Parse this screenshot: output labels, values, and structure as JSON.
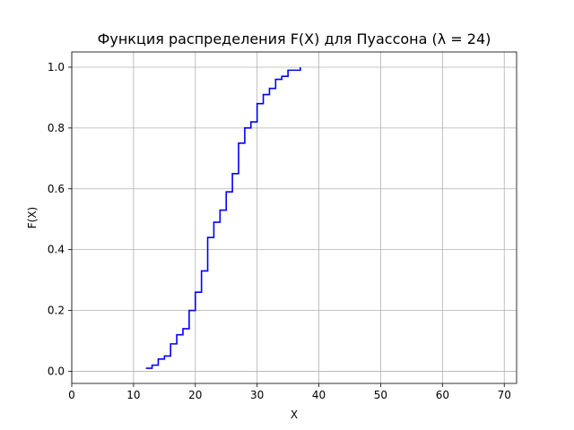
{
  "chart_data": {
    "type": "line",
    "drawstyle": "steps-post",
    "title": "Функция распределения F(X) для Пуассона (λ = 24)",
    "xlabel": "X",
    "ylabel": "F(X)",
    "xlim": [
      0,
      72
    ],
    "ylim": [
      -0.04,
      1.05
    ],
    "xticks": [
      0,
      10,
      20,
      30,
      40,
      50,
      60,
      70
    ],
    "yticks": [
      0.0,
      0.2,
      0.4,
      0.6,
      0.8,
      1.0
    ],
    "xtick_labels": [
      "0",
      "10",
      "20",
      "30",
      "40",
      "50",
      "60",
      "70"
    ],
    "ytick_labels": [
      "0.0",
      "0.2",
      "0.4",
      "0.6",
      "0.8",
      "1.0"
    ],
    "grid": true,
    "series": [
      {
        "color": "#0000ff",
        "x": [
          12,
          13,
          14,
          15,
          16,
          17,
          18,
          19,
          20,
          21,
          22,
          23,
          24,
          25,
          26,
          27,
          28,
          29,
          30,
          31,
          32,
          33,
          34,
          35,
          36,
          37
        ],
        "y": [
          0.01,
          0.02,
          0.04,
          0.05,
          0.09,
          0.12,
          0.14,
          0.2,
          0.26,
          0.33,
          0.44,
          0.49,
          0.53,
          0.59,
          0.65,
          0.75,
          0.8,
          0.82,
          0.88,
          0.91,
          0.93,
          0.96,
          0.97,
          0.99,
          0.99,
          1.0
        ]
      }
    ]
  }
}
